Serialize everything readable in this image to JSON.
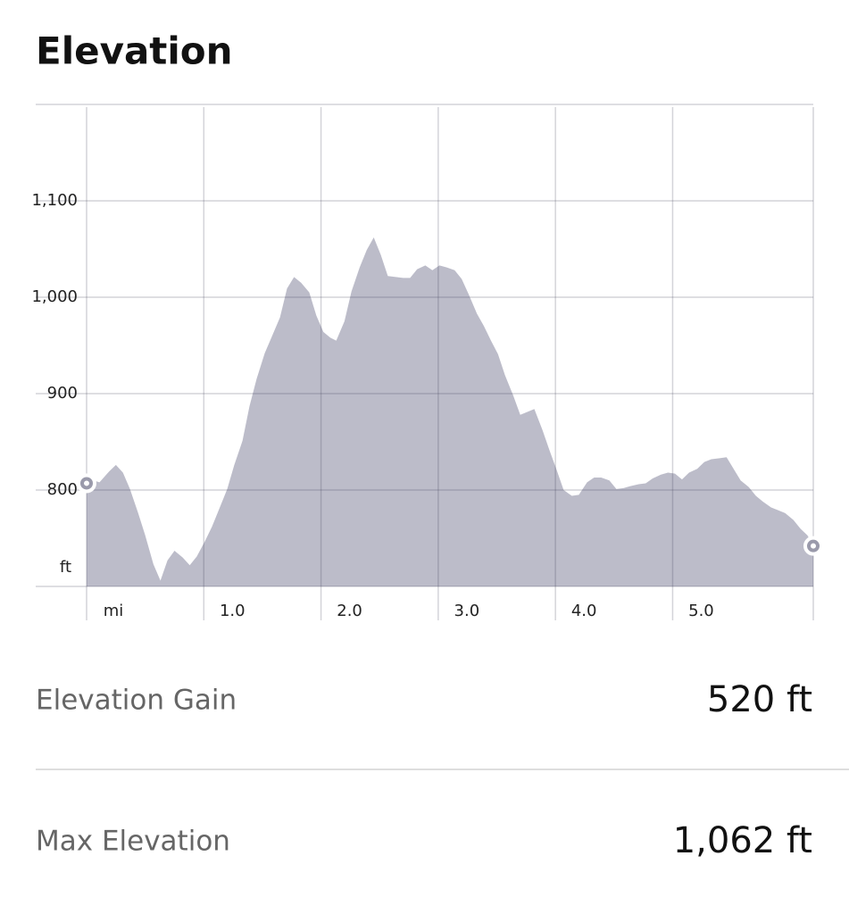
{
  "header": {
    "title": "Elevation"
  },
  "chart_data": {
    "type": "area",
    "y_unit": "ft",
    "x_unit": "mi",
    "color": "#bcbcc9",
    "grid": true,
    "xlim": [
      0,
      6.2
    ],
    "ylim": [
      700,
      1200
    ],
    "xticks": [
      {
        "value": 1,
        "label": "1.0"
      },
      {
        "value": 2,
        "label": "2.0"
      },
      {
        "value": 3,
        "label": "3.0"
      },
      {
        "value": 4,
        "label": "4.0"
      },
      {
        "value": 5,
        "label": "5.0"
      }
    ],
    "yticks": [
      800,
      900,
      {
        "value": 1000,
        "label": "1,000"
      },
      {
        "value": 1100,
        "label": "1,100"
      }
    ],
    "x": [
      0,
      0.06,
      0.11,
      0.19,
      0.25,
      0.31,
      0.37,
      0.44,
      0.5,
      0.57,
      0.63,
      0.69,
      0.75,
      0.82,
      0.88,
      0.94,
      1.01,
      1.07,
      1.13,
      1.2,
      1.26,
      1.33,
      1.39,
      1.45,
      1.52,
      1.58,
      1.65,
      1.71,
      1.77,
      1.83,
      1.9,
      1.96,
      2.02,
      2.08,
      2.13,
      2.2,
      2.26,
      2.33,
      2.39,
      2.45,
      2.51,
      2.57,
      2.64,
      2.7,
      2.76,
      2.82,
      2.89,
      2.95,
      3.01,
      3.07,
      3.14,
      3.2,
      3.26,
      3.33,
      3.39,
      3.45,
      3.51,
      3.57,
      3.64,
      3.7,
      3.76,
      3.82,
      3.89,
      3.95,
      4.01,
      4.07,
      4.14,
      4.2,
      4.27,
      4.33,
      4.39,
      4.46,
      4.52,
      4.58,
      4.64,
      4.71,
      4.77,
      4.83,
      4.9,
      4.96,
      5.02,
      5.08,
      5.14,
      5.21,
      5.27,
      5.33,
      5.4,
      5.46,
      5.52,
      5.58,
      5.65,
      5.71,
      5.77,
      5.84,
      5.9,
      5.96,
      6.03,
      6.09,
      6.15,
      6.2
    ],
    "values": [
      807,
      810,
      808,
      819,
      826,
      818,
      801,
      776,
      753,
      723,
      706,
      727,
      737,
      730,
      722,
      731,
      747,
      762,
      780,
      801,
      826,
      851,
      887,
      915,
      942,
      959,
      979,
      1009,
      1021,
      1015,
      1005,
      981,
      964,
      958,
      955,
      975,
      1006,
      1031,
      1049,
      1062,
      1044,
      1022,
      1021,
      1020,
      1020,
      1029,
      1033,
      1028,
      1033,
      1031,
      1028,
      1019,
      1003,
      983,
      970,
      955,
      941,
      919,
      898,
      878,
      881,
      884,
      862,
      841,
      821,
      800,
      794,
      795,
      808,
      813,
      813,
      810,
      801,
      802,
      804,
      806,
      807,
      812,
      816,
      818,
      817,
      811,
      818,
      822,
      829,
      832,
      833,
      834,
      822,
      810,
      803,
      794,
      788,
      782,
      779,
      776,
      769,
      760,
      753,
      742
    ]
  },
  "stats": [
    {
      "label": "Elevation Gain",
      "value": "520 ft"
    },
    {
      "label": "Max Elevation",
      "value": "1,062 ft"
    }
  ]
}
